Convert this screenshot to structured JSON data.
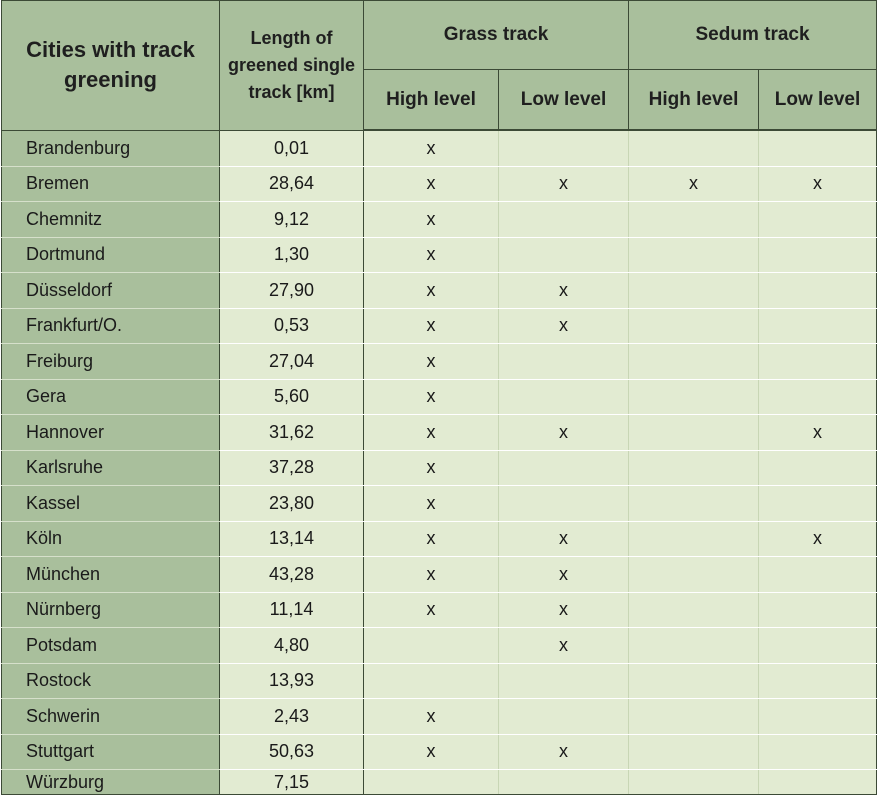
{
  "headers": {
    "city": "Cities with track greening",
    "length": "Length of greened single track [km]",
    "grass_group": "Grass track",
    "sedum_group": "Sedum track",
    "grass_high": "High level",
    "grass_low": "Low level",
    "sedum_high": "High level",
    "sedum_low": "Low level"
  },
  "rows": [
    {
      "city": "Brandenburg",
      "length": "0,01",
      "grass_high": "x",
      "grass_low": "",
      "sedum_high": "",
      "sedum_low": ""
    },
    {
      "city": "Bremen",
      "length": "28,64",
      "grass_high": "x",
      "grass_low": "x",
      "sedum_high": "x",
      "sedum_low": "x"
    },
    {
      "city": "Chemnitz",
      "length": "9,12",
      "grass_high": "x",
      "grass_low": "",
      "sedum_high": "",
      "sedum_low": ""
    },
    {
      "city": "Dortmund",
      "length": "1,30",
      "grass_high": "x",
      "grass_low": "",
      "sedum_high": "",
      "sedum_low": ""
    },
    {
      "city": "Düsseldorf",
      "length": "27,90",
      "grass_high": "x",
      "grass_low": "x",
      "sedum_high": "",
      "sedum_low": ""
    },
    {
      "city": "Frankfurt/O.",
      "length": "0,53",
      "grass_high": "x",
      "grass_low": "x",
      "sedum_high": "",
      "sedum_low": ""
    },
    {
      "city": "Freiburg",
      "length": "27,04",
      "grass_high": "x",
      "grass_low": "",
      "sedum_high": "",
      "sedum_low": ""
    },
    {
      "city": "Gera",
      "length": "5,60",
      "grass_high": "x",
      "grass_low": "",
      "sedum_high": "",
      "sedum_low": ""
    },
    {
      "city": "Hannover",
      "length": "31,62",
      "grass_high": "x",
      "grass_low": "x",
      "sedum_high": "",
      "sedum_low": "x"
    },
    {
      "city": "Karlsruhe",
      "length": "37,28",
      "grass_high": "x",
      "grass_low": "",
      "sedum_high": "",
      "sedum_low": ""
    },
    {
      "city": "Kassel",
      "length": "23,80",
      "grass_high": "x",
      "grass_low": "",
      "sedum_high": "",
      "sedum_low": ""
    },
    {
      "city": "Köln",
      "length": "13,14",
      "grass_high": "x",
      "grass_low": "x",
      "sedum_high": "",
      "sedum_low": "x"
    },
    {
      "city": "München",
      "length": "43,28",
      "grass_high": "x",
      "grass_low": "x",
      "sedum_high": "",
      "sedum_low": ""
    },
    {
      "city": "Nürnberg",
      "length": "11,14",
      "grass_high": "x",
      "grass_low": "x",
      "sedum_high": "",
      "sedum_low": ""
    },
    {
      "city": "Potsdam",
      "length": "4,80",
      "grass_high": "",
      "grass_low": "x",
      "sedum_high": "",
      "sedum_low": ""
    },
    {
      "city": "Rostock",
      "length": "13,93",
      "grass_high": "",
      "grass_low": "",
      "sedum_high": "",
      "sedum_low": ""
    },
    {
      "city": "Schwerin",
      "length": "2,43",
      "grass_high": "x",
      "grass_low": "",
      "sedum_high": "",
      "sedum_low": ""
    },
    {
      "city": "Stuttgart",
      "length": "50,63",
      "grass_high": "x",
      "grass_low": "x",
      "sedum_high": "",
      "sedum_low": ""
    },
    {
      "city": "Würzburg",
      "length": "7,15",
      "grass_high": "",
      "grass_low": "",
      "sedum_high": "",
      "sedum_low": ""
    }
  ],
  "colors": {
    "header_bg": "#a9bf9c",
    "body_bg": "#e2ebd2",
    "border": "#3c4a36"
  }
}
